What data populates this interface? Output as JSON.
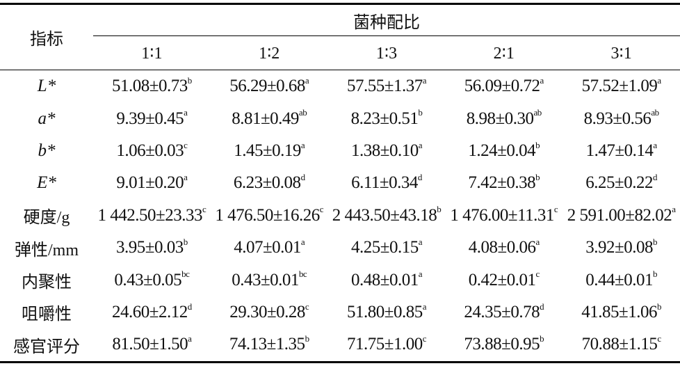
{
  "header": {
    "row_label": "指标",
    "group_label": "菌种配比",
    "ratios": [
      "1∶1",
      "1∶2",
      "1∶3",
      "2∶1",
      "3∶1"
    ]
  },
  "rows": [
    {
      "label": "L*",
      "italic": true,
      "cells": [
        {
          "v": "51.08±0.73",
          "s": "b"
        },
        {
          "v": "56.29±0.68",
          "s": "a"
        },
        {
          "v": "57.55±1.37",
          "s": "a"
        },
        {
          "v": "56.09±0.72",
          "s": "a"
        },
        {
          "v": "57.52±1.09",
          "s": "a"
        }
      ]
    },
    {
      "label": "a*",
      "italic": true,
      "cells": [
        {
          "v": "9.39±0.45",
          "s": "a"
        },
        {
          "v": "8.81±0.49",
          "s": "ab"
        },
        {
          "v": "8.23±0.51",
          "s": "b"
        },
        {
          "v": "8.98±0.30",
          "s": "ab"
        },
        {
          "v": "8.93±0.56",
          "s": "ab"
        }
      ]
    },
    {
      "label": "b*",
      "italic": true,
      "cells": [
        {
          "v": "1.06±0.03",
          "s": "c"
        },
        {
          "v": "1.45±0.19",
          "s": "a"
        },
        {
          "v": "1.38±0.10",
          "s": "a"
        },
        {
          "v": "1.24±0.04",
          "s": "b"
        },
        {
          "v": "1.47±0.14",
          "s": "a"
        }
      ]
    },
    {
      "label": "E*",
      "italic": true,
      "cells": [
        {
          "v": "9.01±0.20",
          "s": "a"
        },
        {
          "v": "6.23±0.08",
          "s": "d"
        },
        {
          "v": "6.11±0.34",
          "s": "d"
        },
        {
          "v": "7.42±0.38",
          "s": "b"
        },
        {
          "v": "6.25±0.22",
          "s": "d"
        }
      ]
    },
    {
      "label": "硬度/g",
      "italic": false,
      "cells": [
        {
          "v": "1 442.50±23.33",
          "s": "c"
        },
        {
          "v": "1 476.50±16.26",
          "s": "c"
        },
        {
          "v": "2 443.50±43.18",
          "s": "b"
        },
        {
          "v": "1 476.00±11.31",
          "s": "c"
        },
        {
          "v": "2 591.00±82.02",
          "s": "a"
        }
      ]
    },
    {
      "label": "弹性/mm",
      "italic": false,
      "cells": [
        {
          "v": "3.95±0.03",
          "s": "b"
        },
        {
          "v": "4.07±0.01",
          "s": "a"
        },
        {
          "v": "4.25±0.15",
          "s": "a"
        },
        {
          "v": "4.08±0.06",
          "s": "a"
        },
        {
          "v": "3.92±0.08",
          "s": "b"
        }
      ]
    },
    {
      "label": "内聚性",
      "italic": false,
      "cells": [
        {
          "v": "0.43±0.05",
          "s": "bc"
        },
        {
          "v": "0.43±0.01",
          "s": "bc"
        },
        {
          "v": "0.48±0.01",
          "s": "a"
        },
        {
          "v": "0.42±0.01",
          "s": "c"
        },
        {
          "v": "0.44±0.01",
          "s": "b"
        }
      ]
    },
    {
      "label": "咀嚼性",
      "italic": false,
      "cells": [
        {
          "v": "24.60±2.12",
          "s": "d"
        },
        {
          "v": "29.30±0.28",
          "s": "c"
        },
        {
          "v": "51.80±0.85",
          "s": "a"
        },
        {
          "v": "24.35±0.78",
          "s": "d"
        },
        {
          "v": "41.85±1.06",
          "s": "b"
        }
      ]
    },
    {
      "label": "感官评分",
      "italic": false,
      "cells": [
        {
          "v": "81.50±1.50",
          "s": "a"
        },
        {
          "v": "74.13±1.35",
          "s": "b"
        },
        {
          "v": "71.75±1.00",
          "s": "c"
        },
        {
          "v": "73.88±0.95",
          "s": "b"
        },
        {
          "v": "70.88±1.15",
          "s": "c"
        }
      ]
    }
  ]
}
